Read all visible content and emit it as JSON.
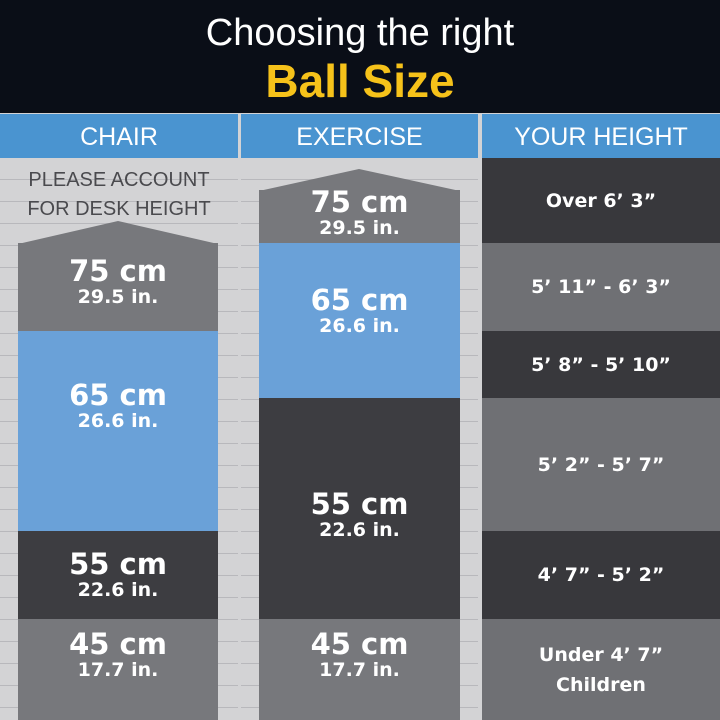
{
  "title": {
    "line1": "Choosing the right",
    "line2": "Ball Size"
  },
  "columns": {
    "chair": "CHAIR",
    "exercise": "EXERCISE",
    "height": "YOUR HEIGHT"
  },
  "chair": {
    "note": [
      "PLEASE ACCOUNT",
      "FOR DESK HEIGHT"
    ],
    "sizes": [
      {
        "cm": "75 cm",
        "in": "29.5 in."
      },
      {
        "cm": "65 cm",
        "in": "26.6 in."
      },
      {
        "cm": "55 cm",
        "in": "22.6 in."
      },
      {
        "cm": "45 cm",
        "in": "17.7 in."
      }
    ]
  },
  "exercise": {
    "sizes": [
      {
        "cm": "75 cm",
        "in": "29.5 in."
      },
      {
        "cm": "65 cm",
        "in": "26.6 in."
      },
      {
        "cm": "55 cm",
        "in": "22.6 in."
      },
      {
        "cm": "45 cm",
        "in": "17.7 in."
      }
    ]
  },
  "heights": [
    "Over 6’ 3”",
    "5’ 11” - 6’ 3”",
    "5’ 8” - 5’ 10”",
    "5’ 2” - 5’ 7”",
    "4’ 7” - 5’ 2”",
    "Under 4’ 7”",
    "Children"
  ],
  "colors": {
    "header_bg": "#0a0e17",
    "accent_yellow": "#f6c21a",
    "column_header": "#4a94d0",
    "blue_band": "#6aa1d8",
    "gray_band": "#77787c",
    "dark_band": "#3d3d41"
  }
}
